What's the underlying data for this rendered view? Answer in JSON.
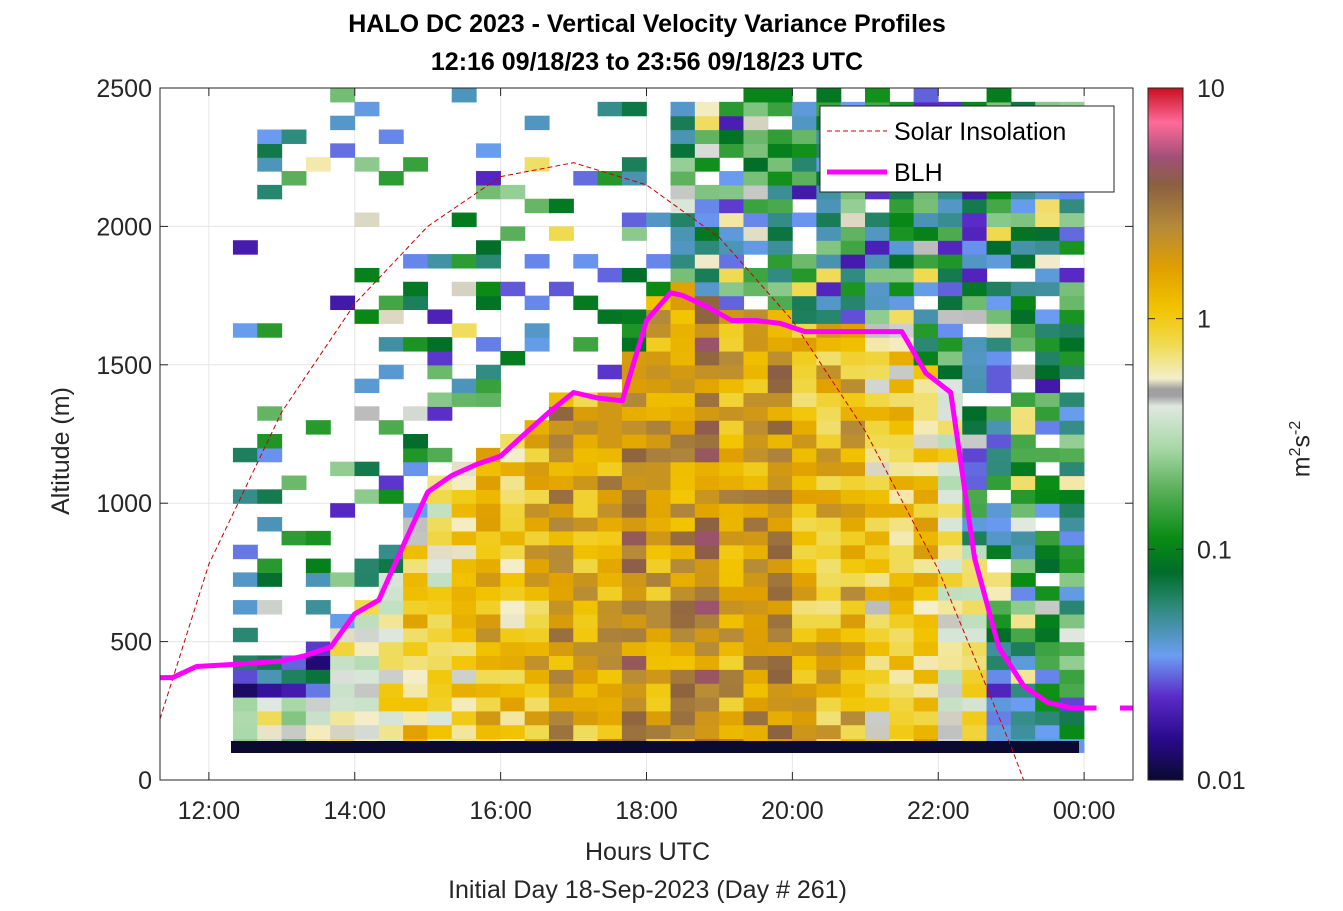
{
  "chart_data": {
    "type": "heatmap",
    "title": "HALO DC 2023 - Vertical Velocity Variance Profiles",
    "subtitle": "12:16 09/18/23 to 23:56 09/18/23  UTC",
    "xlabel": "Hours UTC",
    "footnote": "Initial Day 18-Sep-2023 (Day # 261)",
    "ylabel": "Altitude (m)",
    "colorbar_label": "m²s⁻²",
    "colorbar_label_parts": {
      "base1": "m",
      "exp1": "2",
      "base2": "s",
      "exp2": "-2"
    },
    "colorbar_scale": "log",
    "colorbar_range": [
      0.01,
      10
    ],
    "colorbar_ticks": [
      "0.01",
      "0.1",
      "1",
      "10"
    ],
    "x_range_hours": [
      11.33,
      24.67
    ],
    "x_ticks": [
      "12:00",
      "14:00",
      "16:00",
      "18:00",
      "20:00",
      "22:00",
      "00:00"
    ],
    "y_range": [
      0,
      2500
    ],
    "y_ticks": [
      "0",
      "500",
      "1000",
      "1500",
      "2000",
      "2500"
    ],
    "grid": true,
    "legend_position": "top-right",
    "legend": [
      "Solar Insolation",
      "BLH"
    ],
    "colors": {
      "blh": "#ff00ff",
      "solar": "#cc0000"
    },
    "heatmap": {
      "time_start_hours": 12.33,
      "time_step_hours": 0.3333,
      "altitude_start_m": 100,
      "altitude_step_m": 50,
      "columns": 35,
      "rows": 48,
      "value_description": "log10 vertical velocity variance (m2 s-2), approximate"
    },
    "series": [
      {
        "name": "BLH",
        "x": [
          11.33,
          11.5,
          11.83,
          12.5,
          13.0,
          13.33,
          13.67,
          14.0,
          14.33,
          14.67,
          15.0,
          15.33,
          15.67,
          16.0,
          16.33,
          16.67,
          17.0,
          17.33,
          17.67,
          18.0,
          18.33,
          18.5,
          18.83,
          19.17,
          19.5,
          19.83,
          20.17,
          20.5,
          20.83,
          21.17,
          21.5,
          21.83,
          22.17,
          22.5,
          22.83,
          23.17,
          23.5,
          23.83,
          24.17
        ],
        "y": [
          370,
          370,
          410,
          420,
          430,
          450,
          480,
          600,
          650,
          850,
          1040,
          1100,
          1140,
          1170,
          1250,
          1330,
          1400,
          1380,
          1370,
          1660,
          1760,
          1750,
          1710,
          1660,
          1660,
          1650,
          1620,
          1620,
          1620,
          1620,
          1620,
          1470,
          1400,
          800,
          480,
          340,
          280,
          260,
          260
        ]
      },
      {
        "name": "Solar Insolation",
        "x": [
          11.33,
          12.0,
          13.0,
          14.0,
          15.0,
          16.0,
          17.0,
          18.0,
          19.0,
          20.0,
          21.0,
          22.0,
          23.0,
          23.17,
          24.67
        ],
        "y": [
          220,
          780,
          1330,
          1720,
          2000,
          2180,
          2230,
          2150,
          1960,
          1660,
          1260,
          760,
          120,
          0,
          0
        ]
      }
    ]
  }
}
